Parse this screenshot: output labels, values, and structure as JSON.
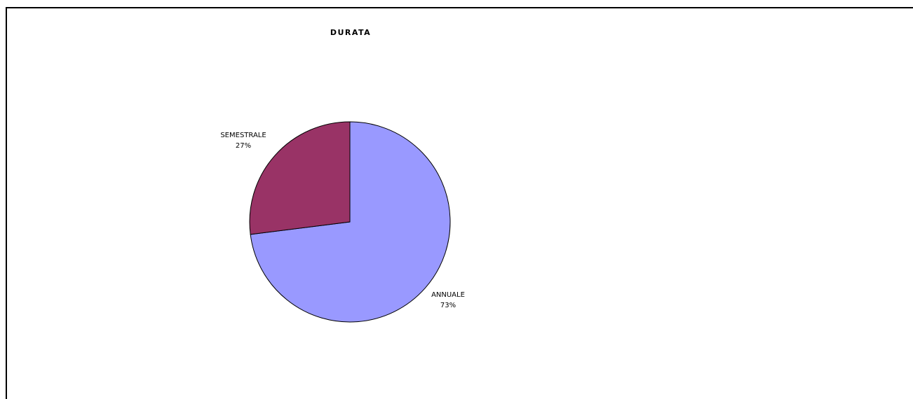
{
  "chart_data": {
    "type": "pie",
    "title": "DURATA",
    "categories": [
      "ANNUALE",
      "SEMESTRALE"
    ],
    "values": [
      73,
      27
    ],
    "labels": [
      {
        "name": "ANNUALE",
        "percent": "73%"
      },
      {
        "name": "SEMESTRALE",
        "percent": "27%"
      }
    ],
    "colors": [
      "#9999FF",
      "#993366"
    ],
    "legend": "none"
  }
}
